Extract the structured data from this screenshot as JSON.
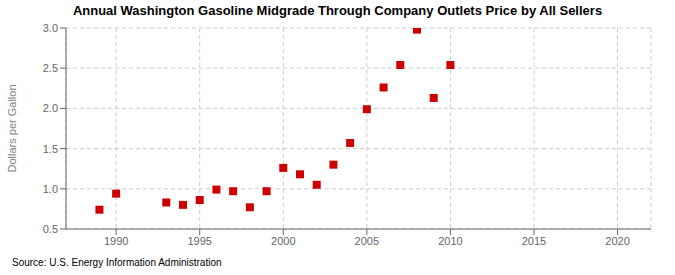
{
  "chart_data": {
    "type": "scatter",
    "title": "Annual Washington Gasoline Midgrade Through Company Outlets Price by All Sellers",
    "ylabel": "Dollars per Gallon",
    "annotations": [
      "Source: U.S. Energy Information Administration"
    ],
    "x": [
      1989,
      1990,
      1993,
      1994,
      1995,
      1996,
      1997,
      1998,
      1999,
      2000,
      2001,
      2002,
      2003,
      2004,
      2005,
      2006,
      2007,
      2008,
      2009,
      2010
    ],
    "values": [
      0.74,
      0.94,
      0.83,
      0.8,
      0.86,
      0.99,
      0.97,
      0.77,
      0.97,
      1.26,
      1.18,
      1.05,
      1.3,
      1.57,
      1.99,
      2.26,
      2.54,
      2.98,
      2.13,
      2.54
    ],
    "color": "#cc0000",
    "marker": "square",
    "xlim": [
      1987,
      2022
    ],
    "ylim": [
      0.5,
      3.0
    ],
    "xticks": [
      1990,
      1995,
      2000,
      2005,
      2010,
      2015,
      2020
    ],
    "yticks": [
      0.5,
      {
        "value": 1,
        "label": "1.0"
      },
      1.5,
      {
        "value": 2,
        "label": "2.0"
      },
      2.5,
      {
        "value": 3,
        "label": "3.0"
      }
    ],
    "grid": true
  }
}
